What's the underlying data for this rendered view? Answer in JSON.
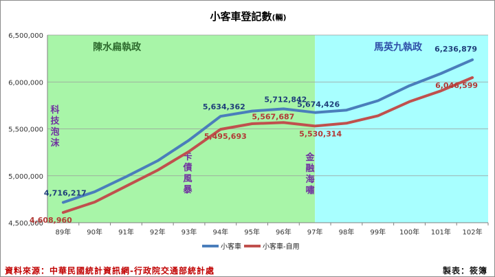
{
  "chart_data": {
    "type": "line",
    "title": "小客車登記數",
    "title_suffix": "(輛)",
    "categories": [
      "89年",
      "90年",
      "91年",
      "92年",
      "93年",
      "94年",
      "95年",
      "96年",
      "97年",
      "98年",
      "99年",
      "100年",
      "101年",
      "102年"
    ],
    "series": [
      {
        "name": "小客車",
        "color": "#4a7ebb",
        "values": [
          4716217,
          4830000,
          4990000,
          5160000,
          5380000,
          5634362,
          5690000,
          5712842,
          5674426,
          5700000,
          5800000,
          5960000,
          6090000,
          6236879
        ]
      },
      {
        "name": "小客車-自用",
        "color": "#c0504d",
        "values": [
          4608960,
          4720000,
          4890000,
          5060000,
          5260000,
          5495693,
          5555000,
          5567687,
          5530314,
          5560000,
          5640000,
          5790000,
          5905000,
          6046599
        ]
      }
    ],
    "ylim": [
      4500000,
      6500000
    ],
    "yticks": [
      4500000,
      5000000,
      5500000,
      6000000,
      6500000
    ],
    "ytick_labels": [
      "4,500,000",
      "5,000,000",
      "5,500,000",
      "6,000,000",
      "6,500,000"
    ],
    "data_labels": [
      {
        "series": 0,
        "index": 0,
        "text": "4,716,217"
      },
      {
        "series": 0,
        "index": 5,
        "text": "5,634,362"
      },
      {
        "series": 0,
        "index": 7,
        "text": "5,712,842"
      },
      {
        "series": 0,
        "index": 8,
        "text": "5,674,426"
      },
      {
        "series": 0,
        "index": 13,
        "text": "6,236,879"
      },
      {
        "series": 1,
        "index": 0,
        "text": "4,608,960"
      },
      {
        "series": 1,
        "index": 5,
        "text": "5,495,693"
      },
      {
        "series": 1,
        "index": 7,
        "text": "5,567,687"
      },
      {
        "series": 1,
        "index": 8,
        "text": "5,530,314"
      },
      {
        "series": 1,
        "index": 13,
        "text": "6,046,599"
      }
    ],
    "regions": [
      {
        "label": "陳水扁執政",
        "color": "#a8f5a8",
        "label_color": "#2e6b2e"
      },
      {
        "label": "馬英九執政",
        "color": "#a8ffff",
        "label_color": "#2f4fa8"
      }
    ],
    "annotations": [
      {
        "text": "科技泡沫",
        "color": "#7030a0"
      },
      {
        "text": "卡債風暴",
        "color": "#7030a0"
      },
      {
        "text": "金融海嘯",
        "color": "#7030a0"
      }
    ],
    "legend_placement": "bottom",
    "grid": "horizontal"
  },
  "footer": {
    "source": "資料來源：中華民國統計資訊網-行政院交通部統計處",
    "author": "製表：筱簿"
  }
}
